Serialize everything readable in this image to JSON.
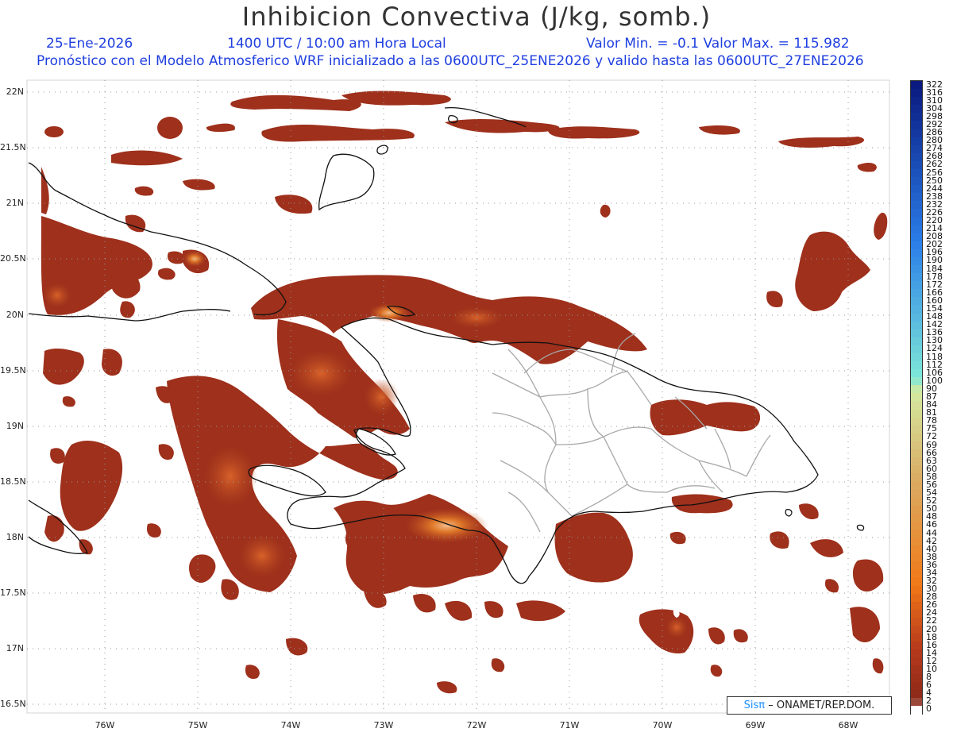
{
  "header": {
    "title": "Inhibicion Convectiva (J/kg, somb.)",
    "date": "25-Ene-2026",
    "time": "1400 UTC / 10:00 am Hora Local",
    "min_max": "Valor Min. = -0.1  Valor Max. = 115.982",
    "forecast": "Pronóstico con el Modelo Atmosferico WRF inicializado a las 0600UTC_25ENE2026 y valido hasta las  0600UTC_27ENE2026"
  },
  "axes": {
    "lat_labels": [
      "22N",
      "21.5N",
      "21N",
      "20.5N",
      "20N",
      "19.5N",
      "19N",
      "18.5N",
      "18N",
      "17.5N",
      "17N",
      "16.5N"
    ],
    "lon_labels": [
      "76W",
      "75W",
      "74W",
      "73W",
      "72W",
      "71W",
      "70W",
      "69W",
      "68W"
    ]
  },
  "colorbar": {
    "labels": [
      "322",
      "316",
      "310",
      "304",
      "298",
      "292",
      "286",
      "280",
      "274",
      "268",
      "262",
      "256",
      "250",
      "244",
      "238",
      "232",
      "226",
      "220",
      "214",
      "208",
      "202",
      "196",
      "190",
      "184",
      "178",
      "172",
      "166",
      "160",
      "154",
      "148",
      "142",
      "136",
      "130",
      "124",
      "118",
      "112",
      "106",
      "100",
      "90",
      "87",
      "84",
      "81",
      "78",
      "75",
      "72",
      "69",
      "66",
      "63",
      "60",
      "58",
      "56",
      "54",
      "52",
      "50",
      "48",
      "46",
      "44",
      "42",
      "40",
      "38",
      "36",
      "34",
      "32",
      "30",
      "28",
      "26",
      "24",
      "22",
      "20",
      "18",
      "16",
      "14",
      "12",
      "10",
      "8",
      "6",
      "4",
      "2",
      "0"
    ],
    "colors": {
      "max": "#0a1a80",
      "blue_mid": "#2a7de8",
      "cyan": "#7ee8d8",
      "pale_green": "#d4eaa0",
      "tan": "#d9b068",
      "orange": "#f07818",
      "red_brown": "#b83a1c",
      "dark_brown": "#8a2818",
      "zero": "#ffffff"
    }
  },
  "map": {
    "fill_colors": {
      "base": "#9a2e1a",
      "mid": "#c0501f",
      "high": "#e07a2a",
      "peak": "#f2b98a"
    },
    "line_colors": {
      "coast": "#111111",
      "province": "#aaaaaa",
      "grid": "#999999"
    }
  },
  "credit": {
    "brand": "Sisπ",
    "org": "– ONAMET/REP.DOM."
  }
}
